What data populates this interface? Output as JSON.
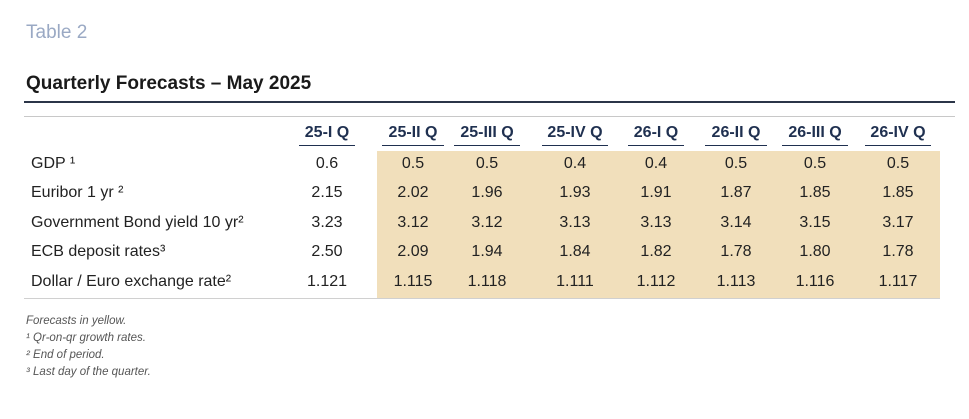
{
  "header": {
    "tag": "Table 2",
    "title": "Quarterly Forecasts – May 2025"
  },
  "table": {
    "columns": [
      "25-I Q",
      "25-II Q",
      "25-III Q",
      "25-IV Q",
      "26-I Q",
      "26-II Q",
      "26-III Q",
      "26-IV Q"
    ],
    "rows": [
      {
        "label": "GDP ¹",
        "values": [
          "0.6",
          "0.5",
          "0.5",
          "0.4",
          "0.4",
          "0.5",
          "0.5",
          "0.5"
        ]
      },
      {
        "label": "Euribor 1 yr ²",
        "values": [
          "2.15",
          "2.02",
          "1.96",
          "1.93",
          "1.91",
          "1.87",
          "1.85",
          "1.85"
        ]
      },
      {
        "label": "Government Bond yield 10 yr²",
        "values": [
          "3.23",
          "3.12",
          "3.12",
          "3.13",
          "3.13",
          "3.14",
          "3.15",
          "3.17"
        ]
      },
      {
        "label": "ECB deposit rates³",
        "values": [
          "2.50",
          "2.09",
          "1.94",
          "1.84",
          "1.82",
          "1.78",
          "1.80",
          "1.78"
        ]
      },
      {
        "label": "Dollar / Euro exchange rate²",
        "values": [
          "1.121",
          "1.115",
          "1.118",
          "1.111",
          "1.112",
          "1.113",
          "1.116",
          "1.117"
        ]
      }
    ]
  },
  "notes": [
    "Forecasts in yellow.",
    "¹ Qr-on-qr growth rates.",
    "² End of period.",
    "³ Last day of the quarter."
  ]
}
